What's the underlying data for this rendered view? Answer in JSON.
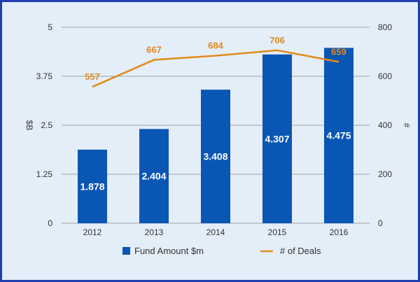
{
  "chart_data": {
    "type": "bar",
    "categories": [
      "2012",
      "2013",
      "2014",
      "2015",
      "2016"
    ],
    "series": [
      {
        "name": "Fund Amount $m",
        "type": "bar",
        "axis": "left",
        "values": [
          1.878,
          2.404,
          3.408,
          4.307,
          4.475
        ],
        "labels": [
          "1.878",
          "2.404",
          "3.408",
          "4.307",
          "4.475"
        ],
        "color": "#0a56b5"
      },
      {
        "name": "# of Deals",
        "type": "line",
        "axis": "right",
        "values": [
          557,
          667,
          684,
          706,
          659
        ],
        "labels": [
          "557",
          "667",
          "684",
          "706",
          "659"
        ],
        "color": "#e08a1e"
      }
    ],
    "ylabel": "$B",
    "y2label": "#",
    "ylim": [
      0,
      5
    ],
    "y2lim": [
      0,
      800
    ],
    "yticks": [
      "0",
      "1.25",
      "2.5",
      "3.75",
      "5"
    ],
    "y2ticks": [
      "0",
      "200",
      "400",
      "600",
      "800"
    ],
    "legend": "bottom",
    "grid": true
  },
  "colors": {
    "background": "#e4eef8",
    "border": "#1f3fae",
    "grid": "#8a8a8a"
  }
}
